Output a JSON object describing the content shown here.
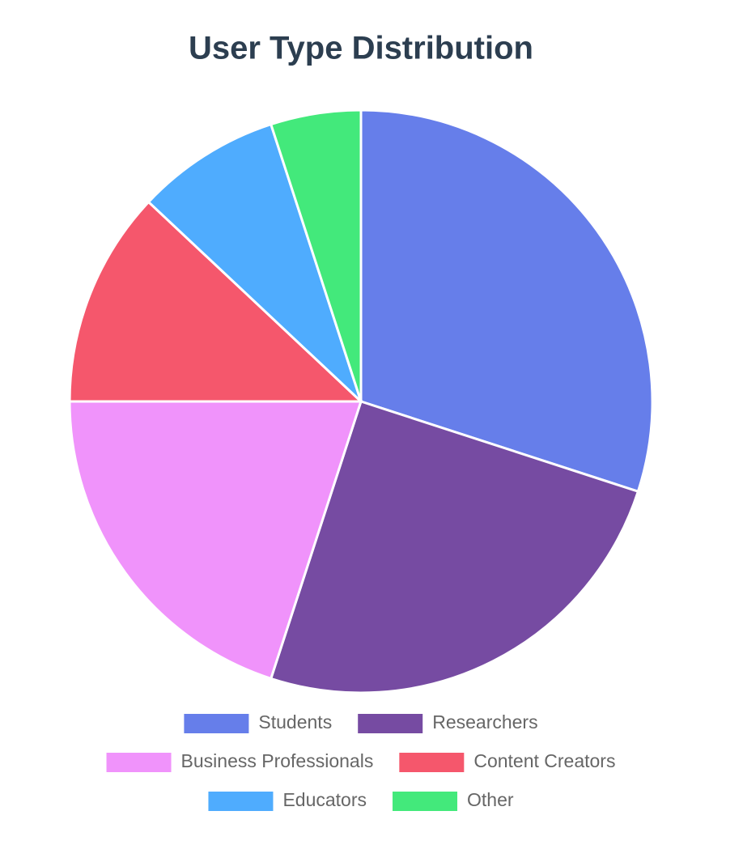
{
  "chart_data": {
    "type": "pie",
    "title": "User Type Distribution",
    "categories": [
      "Students",
      "Researchers",
      "Business Professionals",
      "Content Creators",
      "Educators",
      "Other"
    ],
    "values": [
      30,
      25,
      20,
      12,
      8,
      5
    ],
    "colors": [
      "#667eea",
      "#764ba2",
      "#f093fb",
      "#f5576c",
      "#4facfe",
      "#43e97b"
    ],
    "legend": "bottom"
  }
}
